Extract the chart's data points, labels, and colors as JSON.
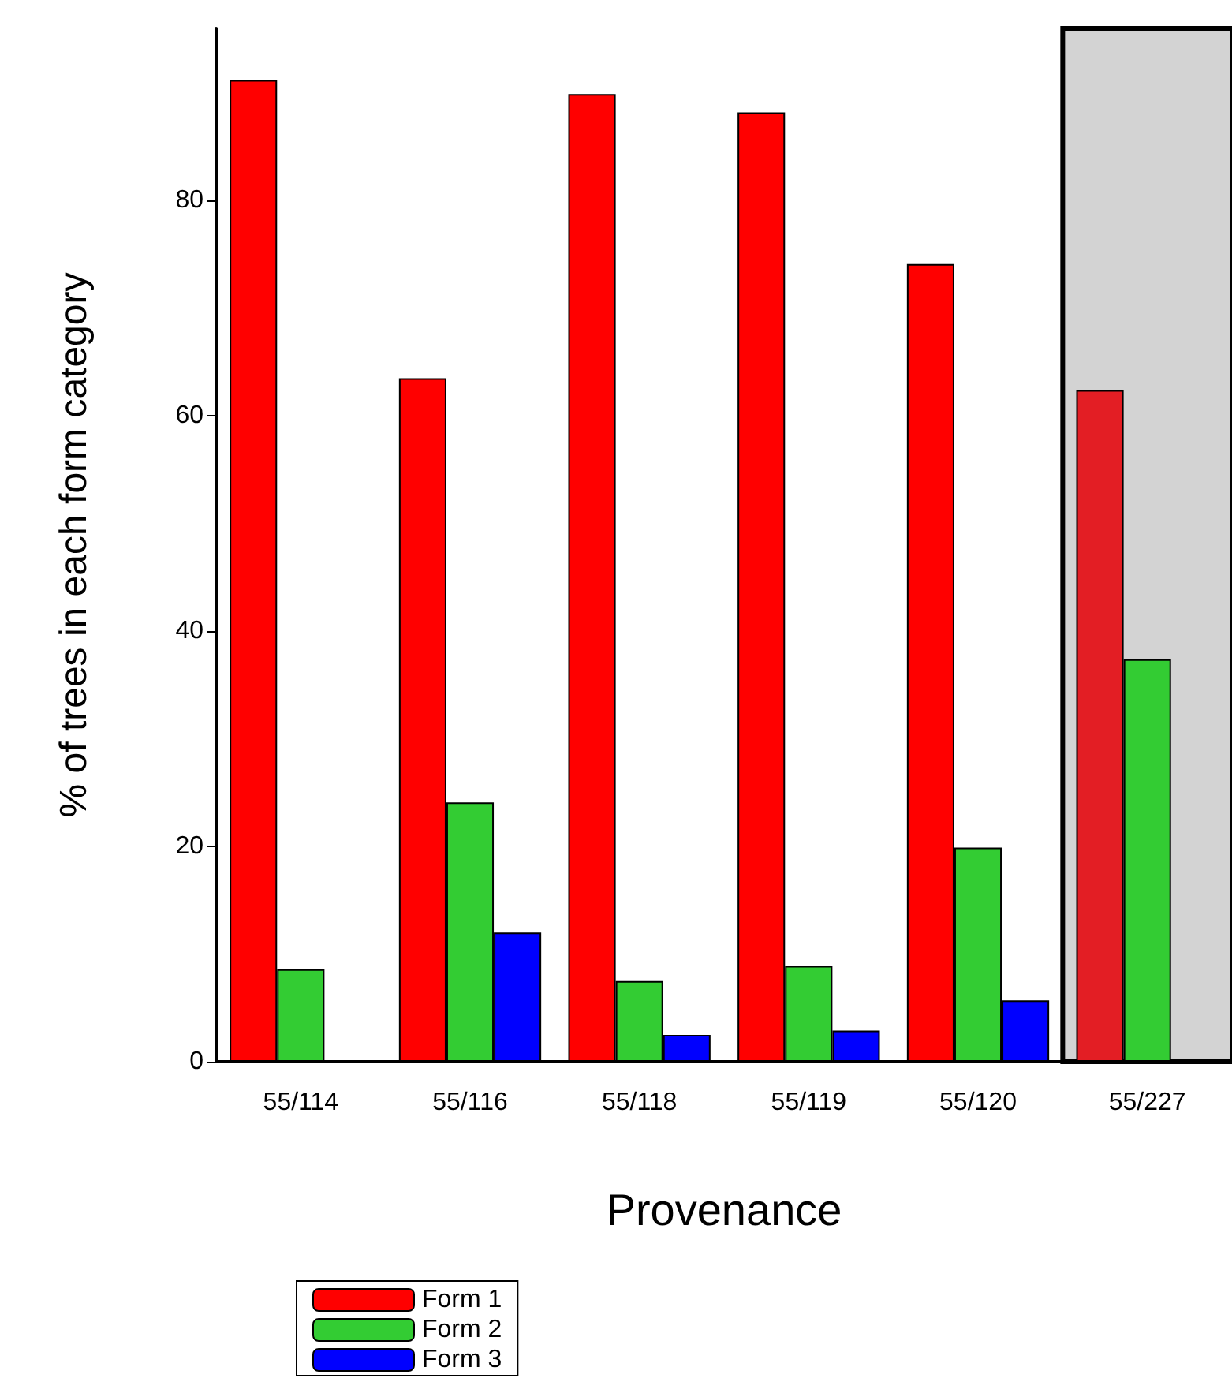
{
  "chart_data": {
    "type": "bar",
    "xlabel": "Provenance",
    "ylabel": "% of trees in each form category",
    "categories": [
      "55/114",
      "55/116",
      "55/118",
      "55/119",
      "55/120",
      "55/227"
    ],
    "series": [
      {
        "name": "Form 1",
        "color": "#ff0000",
        "colors": [
          "#ff0000",
          "#ff0000",
          "#ff0000",
          "#ff0000",
          "#ff0000",
          "#e31e24"
        ],
        "values": [
          91.2,
          63.5,
          89.9,
          88.2,
          74.1,
          62.4
        ]
      },
      {
        "name": "Form 2",
        "color": "#33cc33",
        "values": [
          8.6,
          24.1,
          7.5,
          8.9,
          19.9,
          37.4
        ]
      },
      {
        "name": "Form 3",
        "color": "#0000ff",
        "values": [
          null,
          12.0,
          2.5,
          2.9,
          5.7,
          null
        ]
      }
    ],
    "ylim": [
      0,
      96
    ],
    "yticks": [
      0,
      20,
      40,
      60,
      80
    ],
    "bands": [
      {
        "axis": "x",
        "from": "55/227",
        "to": "55/227",
        "color": "#d3d3d3"
      }
    ],
    "grid": false,
    "legend": "bottom left"
  }
}
